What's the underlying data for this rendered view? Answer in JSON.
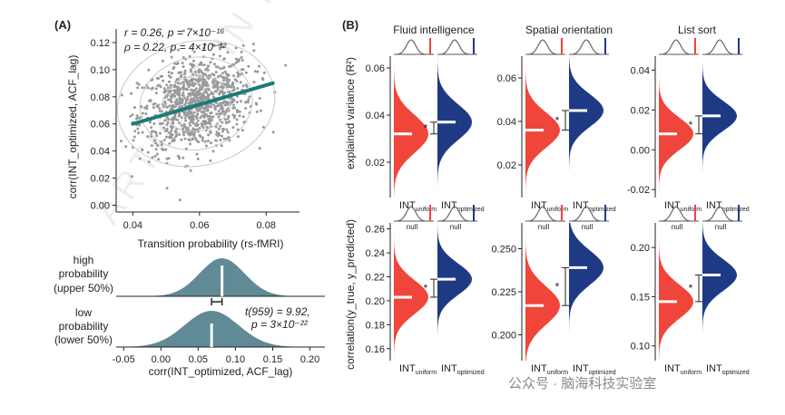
{
  "watermark": {
    "text": "ARTICLE IN PRESS",
    "footer": "公众号 · 脑海科技实验室"
  },
  "colors": {
    "uniform": "#f0453a",
    "optimized": "#1f3a85",
    "scatter_point": "#9a9a9a",
    "regression": "#1a7b78",
    "density": "#5f8a96",
    "axis": "#222222"
  },
  "panelA": {
    "label": "(A)",
    "scatter": {
      "type": "scatter",
      "xlabel": "Transition probability (rs-fMRI)",
      "ylabel": "corr(INT_optimized, ACF_lag)",
      "xlim": [
        0.035,
        0.09
      ],
      "ylim": [
        -0.005,
        0.13
      ],
      "xticks": [
        "0.04",
        "0.06",
        "0.08"
      ],
      "xtick_values": [
        0.04,
        0.06,
        0.08
      ],
      "yticks": [
        "0.00",
        "0.02",
        "0.04",
        "0.06",
        "0.08",
        "0.10",
        "0.12"
      ],
      "ytick_values": [
        0.0,
        0.02,
        0.04,
        0.06,
        0.08,
        0.1,
        0.12
      ],
      "stats_line1": "r = 0.26, p = 7×10⁻¹⁶",
      "stats_line2": "ρ = 0.22, p = 4×10⁻¹²",
      "regression": {
        "x1": 0.04,
        "y1": 0.06,
        "x2": 0.082,
        "y2": 0.09
      },
      "n_points": 961,
      "center": [
        0.059,
        0.075
      ],
      "spread": [
        0.0085,
        0.017
      ]
    },
    "density": {
      "xlabel": "corr(INT_optimized, ACF_lag)",
      "xticks": [
        "-0.05",
        "0.00",
        "0.05",
        "0.10",
        "0.15",
        "0.20"
      ],
      "xtick_values": [
        -0.05,
        0.0,
        0.05,
        0.1,
        0.15,
        0.2
      ],
      "xlim": [
        -0.06,
        0.22
      ],
      "high_label": [
        "high",
        "probability",
        "(upper 50%)"
      ],
      "low_label": [
        "low",
        "probability",
        "(lower 50%)"
      ],
      "high": {
        "mean": 0.082,
        "sd": 0.03
      },
      "low": {
        "mean": 0.068,
        "sd": 0.036
      },
      "test_line1": "t(959) = 9.92,",
      "test_line2": "p = 3×10⁻²²"
    }
  },
  "panelB": {
    "label": "(B)",
    "columns": [
      "Fluid intelligence",
      "Spatial orientation",
      "List sort"
    ],
    "row_labels": [
      "explained variance (R²)",
      "correlation(y_true, y_predicted)"
    ],
    "xlabel_uniform": "INT",
    "xlabel_uniform_sub": "uniform",
    "xlabel_optimized": "INT",
    "xlabel_optimized_sub": "optimized",
    "null_label": "null",
    "significance": "*",
    "chart_data": [
      {
        "type": "violin",
        "panel": "Fluid intelligence R²",
        "ylim": [
          0.005,
          0.065
        ],
        "yticks": [
          "0.02",
          "0.04",
          "0.06"
        ],
        "ytick_values": [
          0.02,
          0.04,
          0.06
        ],
        "uniform_mean": 0.032,
        "optimized_mean": 0.037,
        "uniform_sd": 0.008,
        "optimized_sd": 0.0075
      },
      {
        "type": "violin",
        "panel": "Spatial orientation R²",
        "ylim": [
          0.005,
          0.07
        ],
        "yticks": [
          "0.02",
          "0.04",
          "0.06"
        ],
        "ytick_values": [
          0.02,
          0.04,
          0.06
        ],
        "uniform_mean": 0.036,
        "optimized_mean": 0.045,
        "uniform_sd": 0.008,
        "optimized_sd": 0.0075
      },
      {
        "type": "violin",
        "panel": "List sort R²",
        "ylim": [
          -0.024,
          0.047
        ],
        "yticks": [
          "-0.02",
          "0.00",
          "0.02",
          "0.04"
        ],
        "ytick_values": [
          -0.02,
          0.0,
          0.02,
          0.04
        ],
        "uniform_mean": 0.008,
        "optimized_mean": 0.017,
        "uniform_sd": 0.008,
        "optimized_sd": 0.0075
      },
      {
        "type": "violin",
        "panel": "Fluid intelligence r",
        "ylim": [
          0.15,
          0.265
        ],
        "yticks": [
          "0.16",
          "0.18",
          "0.20",
          "0.22",
          "0.24",
          "0.26"
        ],
        "ytick_values": [
          0.16,
          0.18,
          0.2,
          0.22,
          0.24,
          0.26
        ],
        "uniform_mean": 0.203,
        "optimized_mean": 0.218,
        "uniform_sd": 0.014,
        "optimized_sd": 0.013
      },
      {
        "type": "violin",
        "panel": "Spatial orientation r",
        "ylim": [
          0.185,
          0.265
        ],
        "yticks": [
          "0.200",
          "0.225",
          "0.250"
        ],
        "ytick_values": [
          0.2,
          0.225,
          0.25
        ],
        "uniform_mean": 0.217,
        "optimized_mean": 0.239,
        "uniform_sd": 0.011,
        "optimized_sd": 0.01
      },
      {
        "type": "violin",
        "panel": "List sort r",
        "ylim": [
          0.085,
          0.225
        ],
        "yticks": [
          "0.10",
          "0.15",
          "0.20"
        ],
        "ytick_values": [
          0.1,
          0.15,
          0.2
        ],
        "uniform_mean": 0.145,
        "optimized_mean": 0.172,
        "uniform_sd": 0.017,
        "optimized_sd": 0.016
      }
    ]
  }
}
